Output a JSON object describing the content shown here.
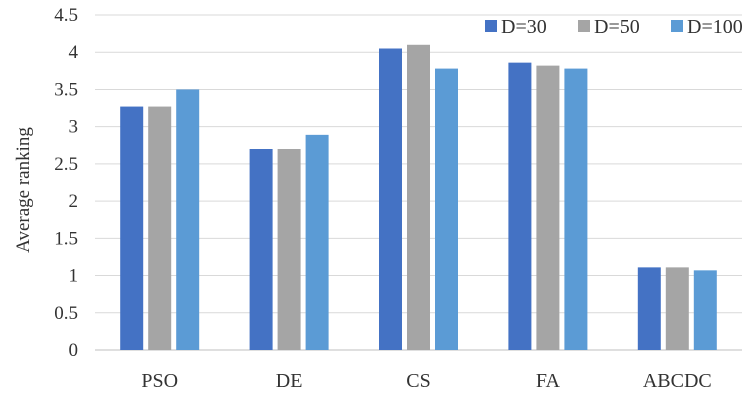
{
  "chart_data": {
    "type": "bar",
    "title": "",
    "xlabel": "",
    "ylabel": "Average ranking",
    "ylim": [
      0,
      4.5
    ],
    "yticks": [
      "0",
      "0.5",
      "1",
      "1.5",
      "2",
      "2.5",
      "3",
      "3.5",
      "4",
      "4.5"
    ],
    "grid": true,
    "legend_position": "top-right",
    "categories": [
      "PSO",
      "DE",
      "CS",
      "FA",
      "ABCDC"
    ],
    "series": [
      {
        "name": "D=30",
        "color": "#4472C4",
        "values": [
          3.27,
          2.7,
          4.05,
          3.86,
          1.11
        ]
      },
      {
        "name": "D=50",
        "color": "#A5A5A5",
        "values": [
          3.27,
          2.7,
          4.1,
          3.82,
          1.11
        ]
      },
      {
        "name": "D=100",
        "color": "#5B9BD5",
        "values": [
          3.5,
          2.89,
          3.78,
          3.78,
          1.07
        ]
      }
    ]
  }
}
